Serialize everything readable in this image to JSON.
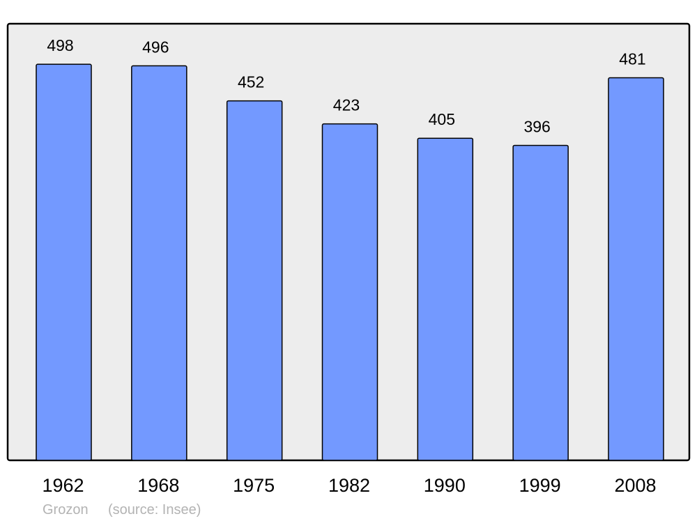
{
  "chart_data": {
    "type": "bar",
    "categories": [
      "1962",
      "1968",
      "1975",
      "1982",
      "1990",
      "1999",
      "2008"
    ],
    "values": [
      498,
      496,
      452,
      423,
      405,
      396,
      481
    ],
    "data_labels": [
      "498",
      "496",
      "452",
      "423",
      "405",
      "396",
      "481"
    ],
    "title": "",
    "xlabel": "",
    "ylabel": "",
    "ylim": [
      0,
      549
    ],
    "grid": false,
    "legend": "none",
    "colors": {
      "bar": "#7399ff",
      "bar_stroke": "#000000",
      "plot_background": "#ededed",
      "footer_text": "#b3b3b3"
    }
  },
  "footer": {
    "place": "Grozon",
    "source": "(source: Insee)"
  }
}
